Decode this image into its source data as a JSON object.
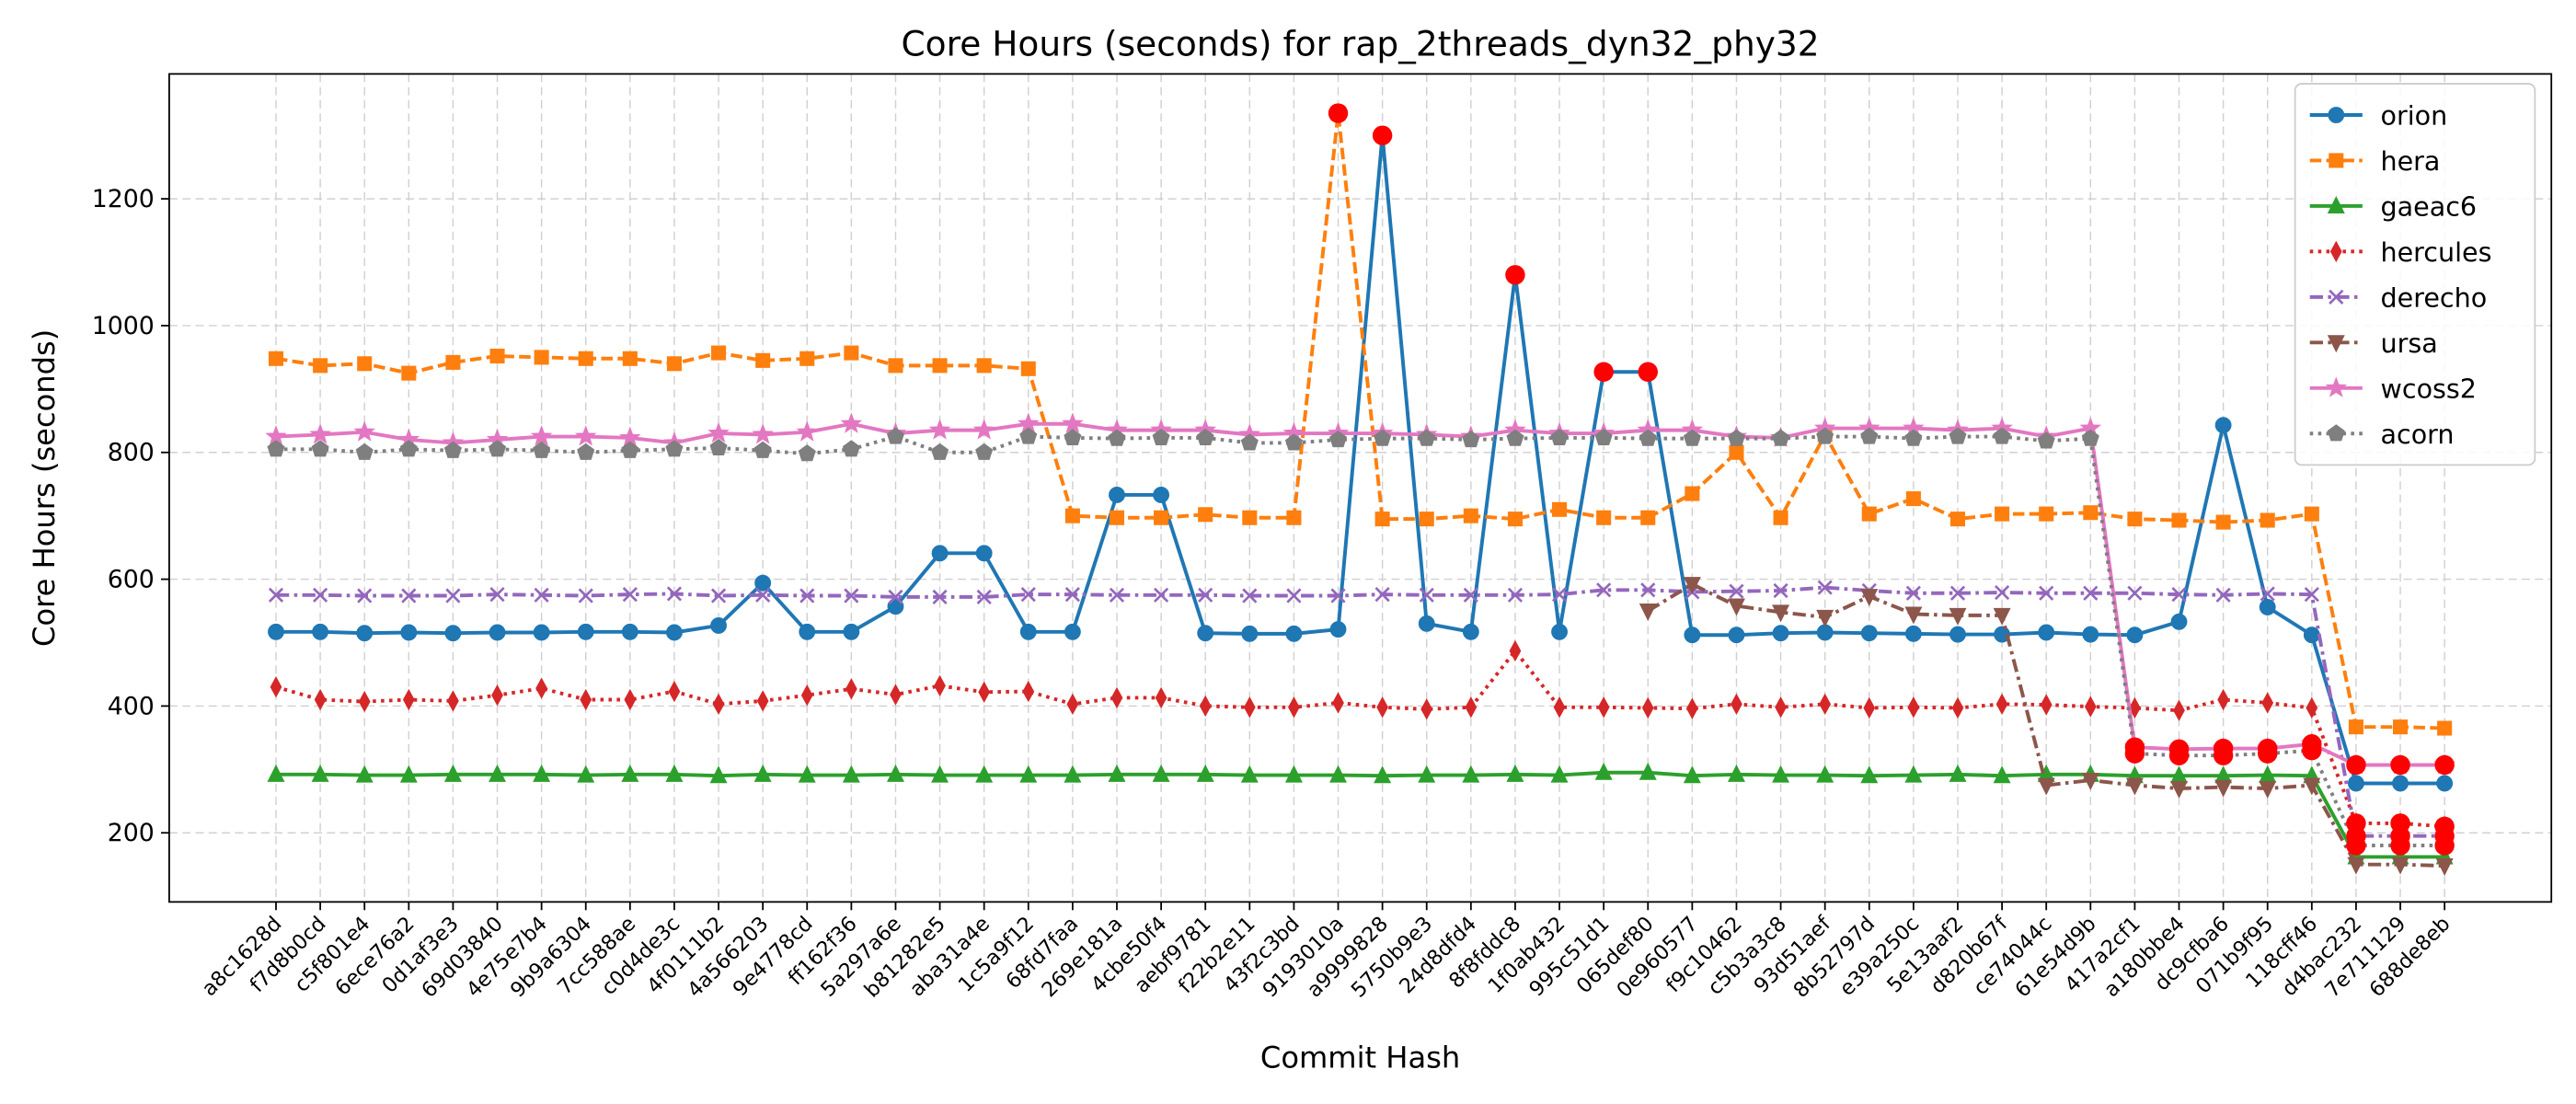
{
  "chart_data": {
    "type": "line",
    "title": "Core Hours (seconds) for rap_2threads_dyn32_phy32",
    "x_label": "Commit Hash",
    "y_label": "Core Hours (seconds)",
    "categories": [
      "a8c1628d",
      "f7d8b0cd",
      "c5f801e4",
      "6ece76a2",
      "0d1af3e3",
      "69d03840",
      "4e75e7b4",
      "9b9a6304",
      "7cc588ae",
      "c0d4de3c",
      "4f0111b2",
      "4a566203",
      "9e4778cd",
      "ff162f36",
      "5a297a6e",
      "b81282e5",
      "aba31a4e",
      "1c5a9f12",
      "68fd7faa",
      "269e181a",
      "4cbe50f4",
      "aebf9781",
      "f22b2e11",
      "43f2c3bd",
      "9193010a",
      "a9999828",
      "5750b9e3",
      "24d8dfd4",
      "8f8fddc8",
      "1f0ab432",
      "995c51d1",
      "065def80",
      "0e960577",
      "f9c10462",
      "c5b3a3c8",
      "93d51aef",
      "8b52797d",
      "e39a250c",
      "5e13aaf2",
      "d820b67f",
      "ce74044c",
      "61e54d9b",
      "417a2cf1",
      "a180bbe4",
      "dc9cfba6",
      "071b9f95",
      "118cff46",
      "d4bac232",
      "7e711129",
      "688de8eb"
    ],
    "ylim": [
      91,
      1397
    ],
    "yticks": [
      200,
      400,
      600,
      800,
      1000,
      1200
    ],
    "grid": true,
    "legend": "upper right",
    "highlight_color": "#ff0000",
    "series": [
      {
        "name": "orion",
        "color": "#1f77b4",
        "marker": "circle",
        "dash": "solid",
        "values": [
          517,
          517,
          515,
          516,
          515,
          516,
          516,
          517,
          517,
          516,
          527,
          594,
          517,
          517,
          557,
          641,
          641,
          517,
          517,
          733,
          733,
          515,
          514,
          514,
          521,
          1300,
          530,
          517,
          1080,
          517,
          927,
          927,
          512,
          512,
          515,
          516,
          515,
          514,
          513,
          513,
          516,
          513,
          512,
          533,
          843,
          556,
          512,
          278,
          278,
          278
        ],
        "highlights": [
          25,
          28,
          30,
          31
        ]
      },
      {
        "name": "hera",
        "color": "#ff7f0e",
        "marker": "square",
        "dash": "dashed",
        "values": [
          948,
          937,
          940,
          925,
          942,
          952,
          950,
          948,
          948,
          940,
          957,
          945,
          948,
          957,
          937,
          937,
          937,
          932,
          700,
          697,
          697,
          702,
          697,
          697,
          1335,
          695,
          695,
          700,
          695,
          710,
          697,
          697,
          735,
          800,
          697,
          828,
          703,
          727,
          695,
          703,
          703,
          705,
          695,
          693,
          690,
          693,
          703,
          367,
          367,
          365
        ],
        "highlights": [
          24
        ]
      },
      {
        "name": "gaeac6",
        "color": "#2ca02c",
        "marker": "triangle-up",
        "dash": "solid",
        "values": [
          292,
          292,
          291,
          291,
          292,
          292,
          292,
          291,
          292,
          292,
          290,
          292,
          291,
          291,
          292,
          291,
          291,
          291,
          291,
          292,
          292,
          292,
          291,
          291,
          291,
          290,
          291,
          291,
          292,
          291,
          295,
          295,
          290,
          292,
          291,
          291,
          290,
          291,
          292,
          290,
          292,
          292,
          290,
          290,
          290,
          291,
          290,
          162,
          162,
          162
        ],
        "highlights": []
      },
      {
        "name": "hercules",
        "color": "#d62728",
        "marker": "thin-diamond",
        "dash": "dotted",
        "values": [
          430,
          410,
          407,
          410,
          408,
          417,
          428,
          410,
          410,
          423,
          403,
          408,
          417,
          427,
          418,
          432,
          422,
          423,
          403,
          413,
          413,
          400,
          398,
          398,
          405,
          398,
          395,
          398,
          487,
          398,
          398,
          397,
          396,
          403,
          398,
          403,
          397,
          398,
          397,
          403,
          402,
          399,
          397,
          393,
          410,
          405,
          397,
          215,
          215,
          210
        ],
        "highlights": [
          47,
          48,
          49
        ]
      },
      {
        "name": "derecho",
        "color": "#9467bd",
        "marker": "x",
        "dash": "dashdot",
        "values": [
          575,
          575,
          574,
          574,
          574,
          576,
          575,
          574,
          576,
          577,
          574,
          575,
          574,
          574,
          572,
          572,
          572,
          576,
          576,
          575,
          575,
          575,
          574,
          574,
          574,
          576,
          575,
          575,
          575,
          576,
          583,
          583,
          580,
          581,
          582,
          587,
          582,
          578,
          578,
          579,
          578,
          578,
          578,
          576,
          575,
          577,
          576,
          195,
          195,
          195
        ],
        "highlights": [
          47,
          48,
          49
        ]
      },
      {
        "name": "ursa",
        "color": "#8c564b",
        "marker": "triangle-down",
        "dash": "dashdot",
        "values": [
          null,
          null,
          null,
          null,
          null,
          null,
          null,
          null,
          null,
          null,
          null,
          null,
          null,
          null,
          null,
          null,
          null,
          null,
          null,
          null,
          null,
          null,
          null,
          null,
          null,
          null,
          null,
          null,
          null,
          null,
          null,
          550,
          592,
          558,
          548,
          540,
          573,
          545,
          543,
          543,
          275,
          283,
          275,
          270,
          272,
          270,
          275,
          150,
          150,
          148
        ],
        "highlights": []
      },
      {
        "name": "wcoss2",
        "color": "#e377c2",
        "marker": "star",
        "dash": "solid",
        "values": [
          825,
          828,
          832,
          820,
          815,
          820,
          825,
          825,
          823,
          815,
          830,
          828,
          832,
          845,
          830,
          835,
          835,
          845,
          845,
          835,
          835,
          835,
          828,
          830,
          830,
          830,
          828,
          825,
          835,
          830,
          830,
          835,
          835,
          825,
          823,
          838,
          838,
          838,
          835,
          838,
          825,
          838,
          335,
          332,
          333,
          333,
          340,
          307,
          307,
          307
        ],
        "highlights": [
          42,
          43,
          44,
          45,
          46,
          47,
          48,
          49
        ]
      },
      {
        "name": "acorn",
        "color": "#7f7f7f",
        "marker": "pentagon",
        "dash": "dotted",
        "values": [
          805,
          805,
          800,
          805,
          803,
          805,
          803,
          800,
          803,
          805,
          807,
          803,
          798,
          805,
          825,
          800,
          800,
          825,
          823,
          822,
          823,
          823,
          815,
          815,
          820,
          822,
          822,
          820,
          822,
          823,
          823,
          822,
          822,
          822,
          822,
          825,
          825,
          822,
          825,
          825,
          818,
          822,
          325,
          322,
          322,
          325,
          330,
          180,
          180,
          180
        ],
        "highlights": [
          42,
          43,
          44,
          45,
          46,
          47,
          48,
          49
        ]
      }
    ]
  }
}
